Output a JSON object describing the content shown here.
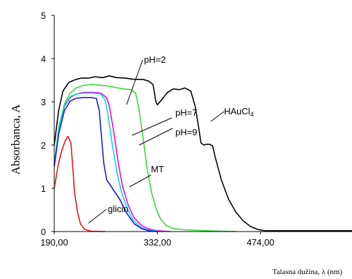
{
  "chart_data": {
    "type": "line",
    "xlabel": "Talasna dužina, λ (nm)",
    "ylabel": "Absorbanca, A",
    "xlim": [
      190,
      600
    ],
    "ylim": [
      0,
      5
    ],
    "x_ticks": [
      190,
      332,
      474
    ],
    "x_tick_labels": [
      "190,00",
      "332,00",
      "474,00"
    ],
    "y_ticks": [
      0,
      1,
      2,
      3,
      4,
      5
    ],
    "y_tick_labels": [
      "0",
      "1",
      "2",
      "3",
      "4",
      "5"
    ],
    "series": [
      {
        "name": "HAuCl4",
        "color": "#000000",
        "points": [
          [
            190,
            2.0
          ],
          [
            196,
            2.8
          ],
          [
            202,
            3.25
          ],
          [
            210,
            3.45
          ],
          [
            220,
            3.52
          ],
          [
            228,
            3.55
          ],
          [
            238,
            3.55
          ],
          [
            246,
            3.58
          ],
          [
            256,
            3.56
          ],
          [
            266,
            3.6
          ],
          [
            276,
            3.56
          ],
          [
            288,
            3.55
          ],
          [
            300,
            3.52
          ],
          [
            312,
            3.52
          ],
          [
            320,
            3.48
          ],
          [
            326,
            3.4
          ],
          [
            330,
            3.0
          ],
          [
            332,
            2.93
          ],
          [
            338,
            3.05
          ],
          [
            346,
            3.22
          ],
          [
            354,
            3.3
          ],
          [
            362,
            3.28
          ],
          [
            370,
            3.32
          ],
          [
            378,
            3.25
          ],
          [
            384,
            2.9
          ],
          [
            388,
            2.5
          ],
          [
            392,
            2.05
          ],
          [
            396,
            2.0
          ],
          [
            400,
            2.02
          ],
          [
            404,
            2.02
          ],
          [
            408,
            1.98
          ],
          [
            412,
            1.7
          ],
          [
            420,
            1.2
          ],
          [
            430,
            0.75
          ],
          [
            440,
            0.45
          ],
          [
            450,
            0.25
          ],
          [
            460,
            0.12
          ],
          [
            470,
            0.05
          ],
          [
            480,
            0.02
          ],
          [
            500,
            0.02
          ],
          [
            600,
            0.02
          ]
        ]
      },
      {
        "name": "pH=9",
        "color": "#33dd33",
        "points": [
          [
            190,
            1.55
          ],
          [
            196,
            2.4
          ],
          [
            204,
            2.95
          ],
          [
            212,
            3.2
          ],
          [
            220,
            3.32
          ],
          [
            230,
            3.38
          ],
          [
            240,
            3.4
          ],
          [
            250,
            3.39
          ],
          [
            262,
            3.37
          ],
          [
            274,
            3.33
          ],
          [
            286,
            3.3
          ],
          [
            296,
            3.28
          ],
          [
            302,
            3.2
          ],
          [
            306,
            2.9
          ],
          [
            312,
            2.2
          ],
          [
            318,
            1.45
          ],
          [
            324,
            0.9
          ],
          [
            330,
            0.55
          ],
          [
            336,
            0.3
          ],
          [
            344,
            0.14
          ],
          [
            354,
            0.07
          ],
          [
            370,
            0.04
          ],
          [
            400,
            0.02
          ],
          [
            440,
            0.0
          ]
        ]
      },
      {
        "name": "pH=2",
        "color": "#ee00ee",
        "points": [
          [
            190,
            1.5
          ],
          [
            196,
            2.3
          ],
          [
            204,
            2.9
          ],
          [
            212,
            3.1
          ],
          [
            220,
            3.18
          ],
          [
            232,
            3.22
          ],
          [
            244,
            3.22
          ],
          [
            254,
            3.2
          ],
          [
            262,
            3.1
          ],
          [
            266,
            2.9
          ],
          [
            272,
            2.3
          ],
          [
            278,
            1.6
          ],
          [
            284,
            1.05
          ],
          [
            292,
            0.6
          ],
          [
            300,
            0.32
          ],
          [
            310,
            0.14
          ],
          [
            320,
            0.06
          ],
          [
            332,
            0.02
          ],
          [
            350,
            0.0
          ]
        ]
      },
      {
        "name": "pH=7",
        "color": "#00d8ee",
        "points": [
          [
            190,
            1.55
          ],
          [
            196,
            2.35
          ],
          [
            204,
            2.92
          ],
          [
            212,
            3.12
          ],
          [
            220,
            3.18
          ],
          [
            232,
            3.2
          ],
          [
            244,
            3.2
          ],
          [
            254,
            3.18
          ],
          [
            260,
            3.05
          ],
          [
            264,
            2.7
          ],
          [
            270,
            2.0
          ],
          [
            276,
            1.4
          ],
          [
            282,
            0.95
          ],
          [
            290,
            0.55
          ],
          [
            298,
            0.28
          ],
          [
            308,
            0.11
          ],
          [
            318,
            0.04
          ],
          [
            332,
            0.01
          ]
        ]
      },
      {
        "name": "MT",
        "color": "#1a1add",
        "points": [
          [
            190,
            1.5
          ],
          [
            196,
            2.25
          ],
          [
            204,
            2.8
          ],
          [
            212,
            3.02
          ],
          [
            220,
            3.08
          ],
          [
            230,
            3.1
          ],
          [
            240,
            3.1
          ],
          [
            248,
            3.08
          ],
          [
            252,
            2.8
          ],
          [
            255,
            2.2
          ],
          [
            258,
            1.6
          ],
          [
            262,
            1.2
          ],
          [
            270,
            1.0
          ],
          [
            280,
            0.75
          ],
          [
            290,
            0.42
          ],
          [
            300,
            0.18
          ],
          [
            310,
            0.07
          ],
          [
            320,
            0.02
          ],
          [
            332,
            0.0
          ]
        ]
      },
      {
        "name": "glicin",
        "color": "#ee1111",
        "points": [
          [
            190,
            1.0
          ],
          [
            195,
            1.5
          ],
          [
            200,
            1.85
          ],
          [
            205,
            2.1
          ],
          [
            209,
            2.2
          ],
          [
            213,
            2.05
          ],
          [
            215,
            1.6
          ],
          [
            218,
            0.9
          ],
          [
            222,
            0.45
          ],
          [
            226,
            0.18
          ],
          [
            232,
            0.05
          ],
          [
            240,
            0.01
          ],
          [
            260,
            0.0
          ]
        ]
      }
    ],
    "annotations": [
      {
        "text": "pH=2",
        "series": "pH=2"
      },
      {
        "text": "pH=7",
        "series": "pH=7"
      },
      {
        "text": "pH=9",
        "series": "pH=9"
      },
      {
        "text": "HAuCl4",
        "series": "HAuCl4"
      },
      {
        "text": "MT",
        "series": "MT"
      },
      {
        "text": "glicin",
        "series": "glicin"
      }
    ]
  }
}
